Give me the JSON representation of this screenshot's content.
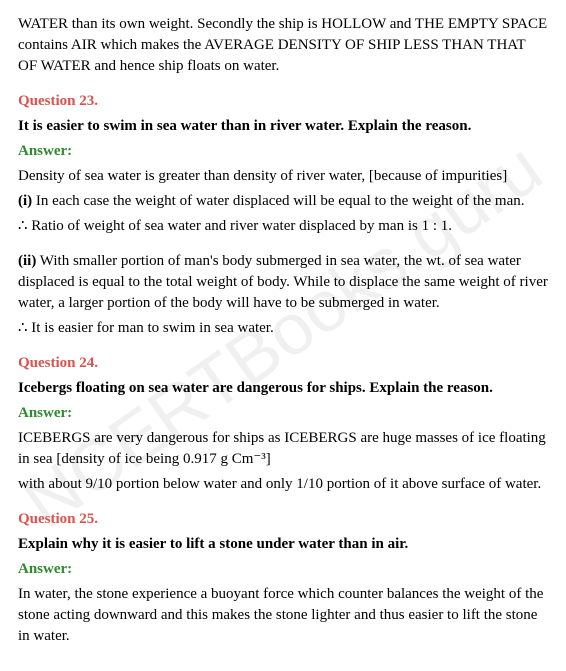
{
  "watermark": "NCERTBooks.guru",
  "intro": "WATER than its own weight. Secondly the ship is HOLLOW and THE EMPTY SPACE contains AIR which makes the AVERAGE DENSITY OF SHIP LESS THAN THAT OF WATER and hence ship floats on water.",
  "q23": {
    "label": "Question 23.",
    "text": "It is easier to swim in sea water than in river water. Explain the reason.",
    "answer_label": "Answer:",
    "a1": "Density of sea water is greater than density of river water, [because of impurities]",
    "i_label": "(i)",
    "i_text": " In each case the weight of water displaced will be equal to the weight of the man.",
    "a2": "∴ Ratio of weight of sea water and river water displaced by man is 1 : 1.",
    "ii_label": "(ii)",
    "ii_text": " With smaller portion of man's body submerged in sea water, the wt. of sea water displaced is equal to the total weight of body. While to displace the same weight of river water, a larger portion of the body will have to be submerged in water.",
    "a3": "∴ It is easier for man to swim in sea water."
  },
  "q24": {
    "label": "Question 24.",
    "text": "Icebergs floating on sea water are dangerous for ships. Explain the reason.",
    "answer_label": "Answer:",
    "a1": "ICEBERGS are very dangerous for ships as ICEBERGS are huge masses of ice floating in sea [density of ice being 0.917 g Cm⁻³]",
    "a2": "with about 9/10 portion below water and only 1/10 portion of it above surface of water."
  },
  "q25": {
    "label": "Question 25.",
    "text": "Explain why it is easier to lift a stone under water than in air.",
    "answer_label": "Answer:",
    "a1": "In water, the stone experience a buoyant force which counter balances the weight of the stone acting downward and this makes the stone lighter and thus easier to lift the stone in water."
  }
}
